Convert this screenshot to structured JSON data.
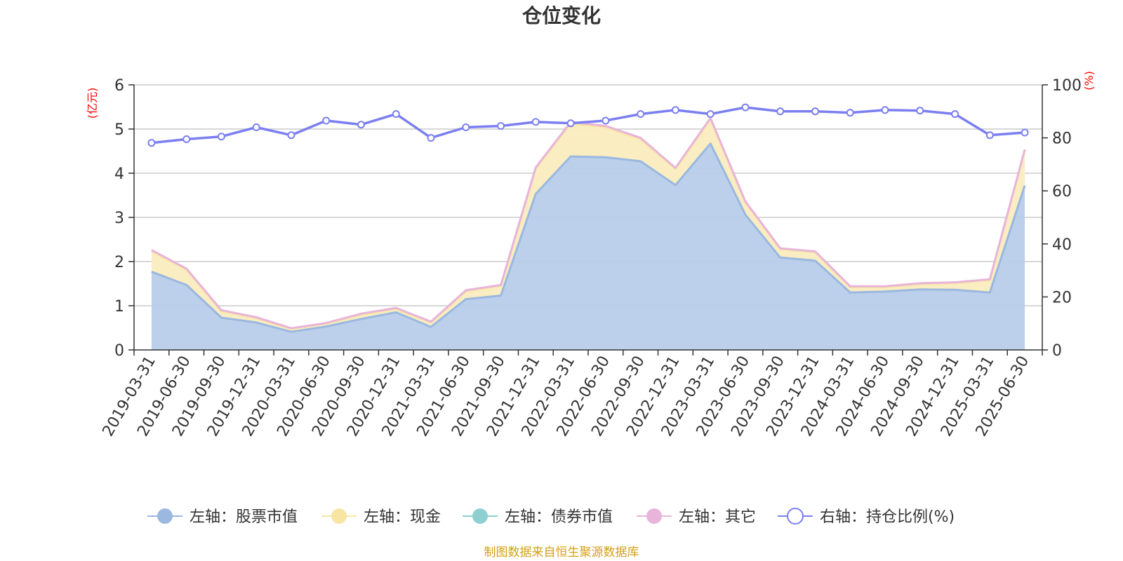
{
  "chart_data": {
    "type": "area",
    "title": "仓位变化",
    "left_axis_unit": "(亿元)",
    "right_axis_unit": "(%)",
    "ylim_left": [
      0,
      6
    ],
    "yticks_left": [
      "0",
      "1",
      "2",
      "3",
      "4",
      "5",
      "6"
    ],
    "ylim_right": [
      0,
      100
    ],
    "yticks_right": [
      "0",
      "20",
      "40",
      "60",
      "80",
      "100"
    ],
    "grid": true,
    "legend_position": "bottom",
    "source_note": "制图数据来自恒生聚源数据库",
    "categories": [
      "2019-03-31",
      "2019-06-30",
      "2019-09-30",
      "2019-12-31",
      "2020-03-31",
      "2020-06-30",
      "2020-09-30",
      "2020-12-31",
      "2021-03-31",
      "2021-06-30",
      "2021-09-30",
      "2021-12-31",
      "2022-03-31",
      "2022-06-30",
      "2022-09-30",
      "2022-12-31",
      "2023-03-31",
      "2023-06-30",
      "2023-09-30",
      "2023-12-31",
      "2024-03-31",
      "2024-06-30",
      "2024-09-30",
      "2024-12-31",
      "2025-03-31",
      "2025-06-30"
    ],
    "series": [
      {
        "name": "左轴：股票市值",
        "axis": "left",
        "color": "#9ab8e0",
        "fill": "#b8cdea",
        "values": [
          1.77,
          1.47,
          0.73,
          0.62,
          0.41,
          0.53,
          0.7,
          0.85,
          0.52,
          1.15,
          1.23,
          3.53,
          4.38,
          4.36,
          4.27,
          3.73,
          4.67,
          3.06,
          2.09,
          2.02,
          1.3,
          1.32,
          1.37,
          1.36,
          1.3,
          3.72
        ]
      },
      {
        "name": "左轴：现金",
        "axis": "left",
        "color": "#f7e6a1",
        "fill": "#f9ecbe",
        "values": [
          0.47,
          0.35,
          0.15,
          0.1,
          0.07,
          0.07,
          0.1,
          0.08,
          0.1,
          0.18,
          0.22,
          0.58,
          0.75,
          0.68,
          0.5,
          0.37,
          0.55,
          0.28,
          0.19,
          0.19,
          0.12,
          0.1,
          0.12,
          0.15,
          0.28,
          0.8
        ]
      },
      {
        "name": "左轴：债券市值",
        "axis": "left",
        "color": "#8ed0cf",
        "fill": "#b7e2e1",
        "values": [
          0,
          0,
          0,
          0,
          0,
          0,
          0,
          0,
          0,
          0,
          0,
          0,
          0,
          0,
          0,
          0,
          0,
          0,
          0,
          0,
          0,
          0,
          0,
          0,
          0,
          0
        ]
      },
      {
        "name": "左轴：其它",
        "axis": "left",
        "color": "#e8b4d9",
        "fill": "#f0cde6",
        "values": [
          0.02,
          0.02,
          0.02,
          0.02,
          0.01,
          0.01,
          0.02,
          0.02,
          0.02,
          0.02,
          0.02,
          0.02,
          0.03,
          0.03,
          0.03,
          0.02,
          0.03,
          0.02,
          0.02,
          0.02,
          0.02,
          0.02,
          0.02,
          0.02,
          0.02,
          0.02
        ]
      },
      {
        "name": "右轴：持仓比例(%)",
        "axis": "right",
        "color": "#7b7ff0",
        "values": [
          78.1,
          79.5,
          80.5,
          84.0,
          81.0,
          86.5,
          85.0,
          89.0,
          80.0,
          84.0,
          84.5,
          86.0,
          85.5,
          86.5,
          89.0,
          90.5,
          89.0,
          91.5,
          90.0,
          90.0,
          89.5,
          90.5,
          90.3,
          89.0,
          81.0,
          82.0
        ]
      }
    ]
  }
}
